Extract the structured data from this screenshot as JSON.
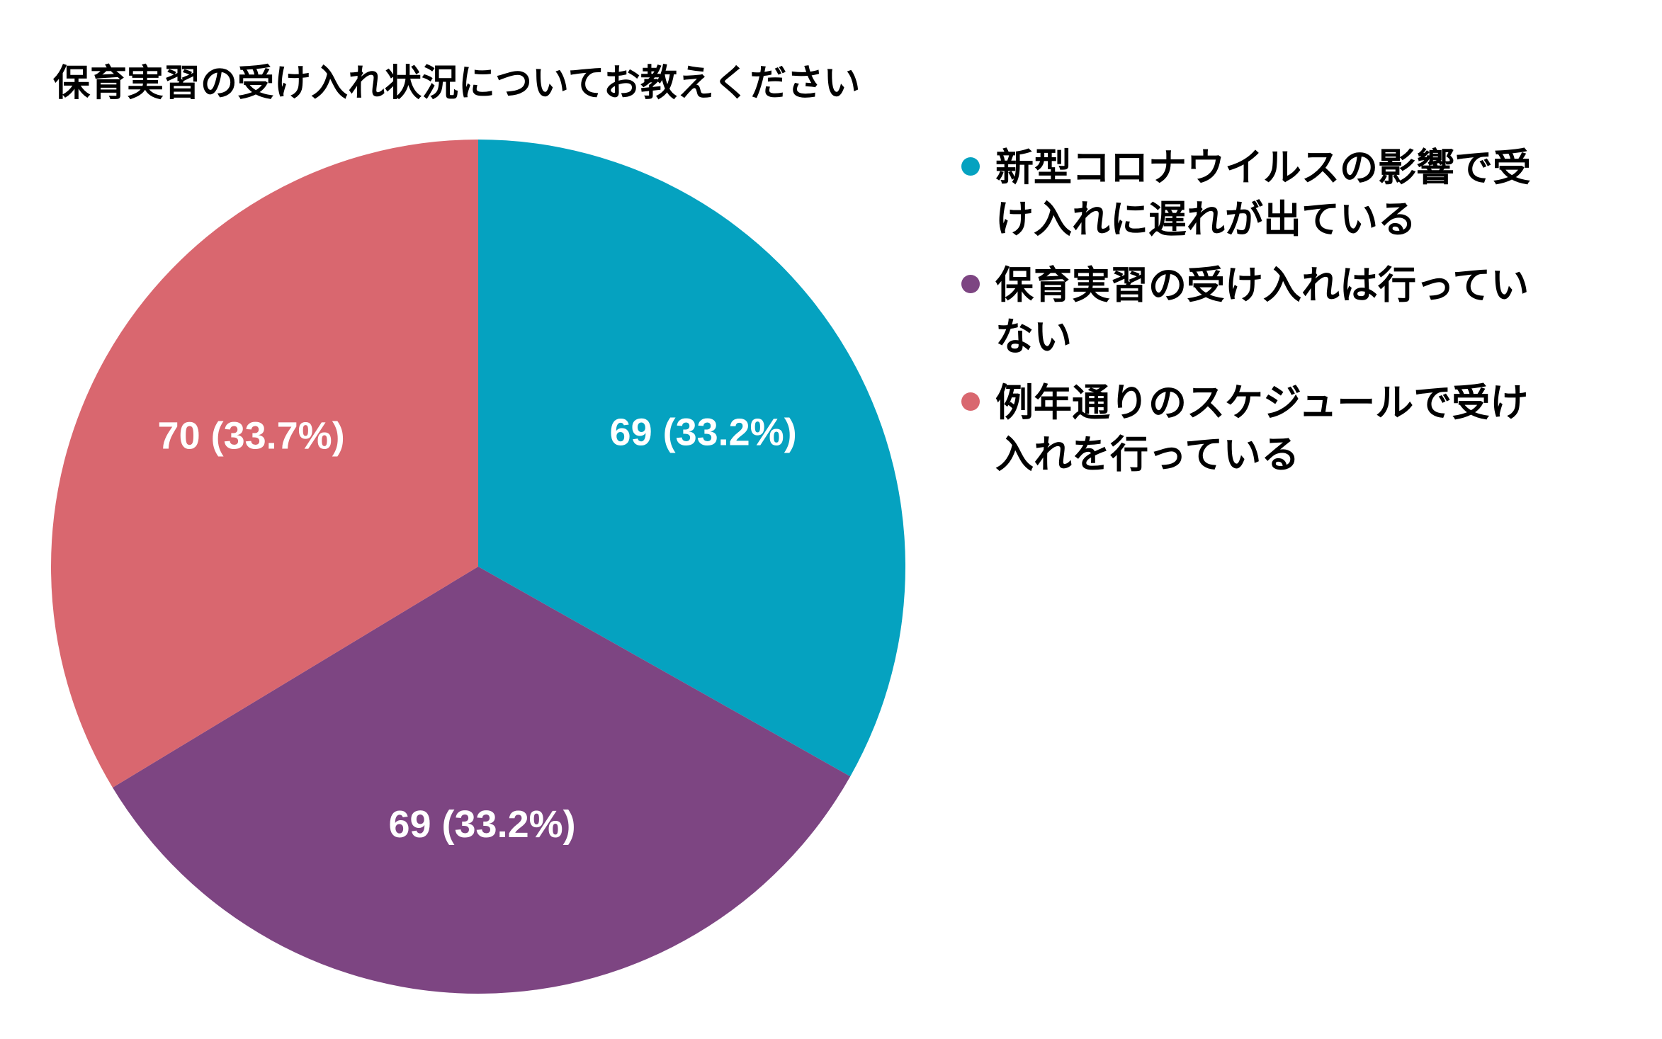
{
  "chart_data": {
    "type": "pie",
    "title": "保育実習の受け入れ状況についてお教えください",
    "categories": [
      "新型コロナウイルスの影響で受け入れに遅れが出ている",
      "保育実習の受け入れは行っていない",
      "例年通りのスケジュールで受け入れを行っている"
    ],
    "values": [
      69,
      69,
      70
    ],
    "percentages": [
      33.2,
      33.2,
      33.7
    ],
    "data_labels": [
      "69 (33.2%)",
      "69 (33.2%)",
      "70 (33.7%)"
    ],
    "colors": [
      "#05A2C0",
      "#7D4582",
      "#D9676F"
    ],
    "legend": {
      "position": "right",
      "lines": [
        [
          "新型コロナウイルスの影響で受",
          "け入れに遅れが出ている"
        ],
        [
          "保育実習の受け入れは行ってい",
          "ない"
        ],
        [
          "例年通りのスケジュールで受け",
          "入れを行っている"
        ]
      ]
    }
  }
}
